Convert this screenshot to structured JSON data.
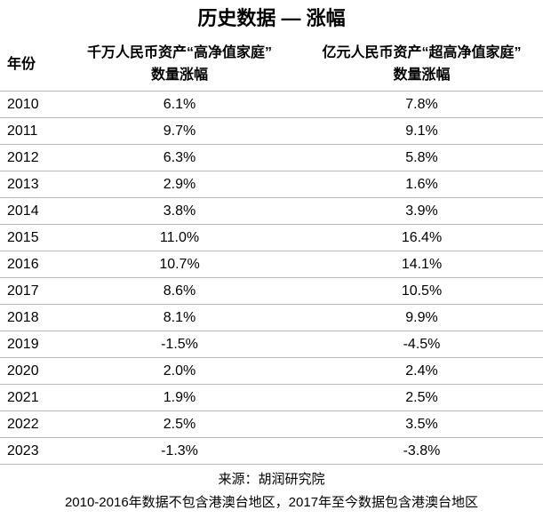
{
  "table": {
    "title": "历史数据 — 涨幅",
    "headers": [
      [
        "年份"
      ],
      [
        "千万人民币资产“高净值家庭”",
        "数量涨幅"
      ],
      [
        "亿元人民币资产“超高净值家庭”",
        "数量涨幅"
      ]
    ],
    "rows": [
      [
        "2010",
        "6.1%",
        "7.8%"
      ],
      [
        "2011",
        "9.7%",
        "9.1%"
      ],
      [
        "2012",
        "6.3%",
        "5.8%"
      ],
      [
        "2013",
        "2.9%",
        "1.6%"
      ],
      [
        "2014",
        "3.8%",
        "3.9%"
      ],
      [
        "2015",
        "11.0%",
        "16.4%"
      ],
      [
        "2016",
        "10.7%",
        "14.1%"
      ],
      [
        "2017",
        "8.6%",
        "10.5%"
      ],
      [
        "2018",
        "8.1%",
        "9.9%"
      ],
      [
        "2019",
        "-1.5%",
        "-4.5%"
      ],
      [
        "2020",
        "2.0%",
        "2.4%"
      ],
      [
        "2021",
        "1.9%",
        "2.5%"
      ],
      [
        "2022",
        "2.5%",
        "3.5%"
      ],
      [
        "2023",
        "-1.3%",
        "-3.8%"
      ]
    ],
    "footer": [
      "来源：胡润研究院",
      "2010-2016年数据不包含港澳台地区，2017年至今数据包含港澳台地区"
    ]
  }
}
